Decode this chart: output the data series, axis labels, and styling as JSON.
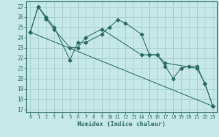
{
  "xlabel": "Humidex (Indice chaleur)",
  "bg_color": "#c6e8e6",
  "grid_color": "#a8d0ce",
  "line_color": "#2a6b60",
  "xlim": [
    -0.5,
    23.5
  ],
  "ylim": [
    16.7,
    27.5
  ],
  "xticks": [
    0,
    1,
    2,
    3,
    4,
    5,
    6,
    7,
    8,
    9,
    10,
    11,
    12,
    13,
    14,
    15,
    16,
    17,
    18,
    19,
    20,
    21,
    22,
    23
  ],
  "yticks": [
    17,
    18,
    19,
    20,
    21,
    22,
    23,
    24,
    25,
    26,
    27
  ],
  "line1_x": [
    0,
    1,
    2,
    3,
    5,
    6,
    7,
    9,
    10,
    11,
    12,
    14,
    15,
    16,
    17,
    21,
    22,
    23
  ],
  "line1_y": [
    24.5,
    27.0,
    26.0,
    25.0,
    21.8,
    23.5,
    23.5,
    24.3,
    25.0,
    25.7,
    25.4,
    24.3,
    22.3,
    22.3,
    21.5,
    21.0,
    19.5,
    17.3
  ],
  "line2_x": [
    0,
    1,
    2,
    3,
    5,
    6,
    7,
    9,
    14,
    15,
    16,
    17,
    18,
    19,
    20,
    21,
    22,
    23
  ],
  "line2_y": [
    24.5,
    27.0,
    25.8,
    24.8,
    23.0,
    23.0,
    24.0,
    24.8,
    22.3,
    22.3,
    22.3,
    21.2,
    20.0,
    21.0,
    21.2,
    21.2,
    19.5,
    17.3
  ],
  "line3_x": [
    0,
    23
  ],
  "line3_y": [
    24.5,
    17.3
  ]
}
